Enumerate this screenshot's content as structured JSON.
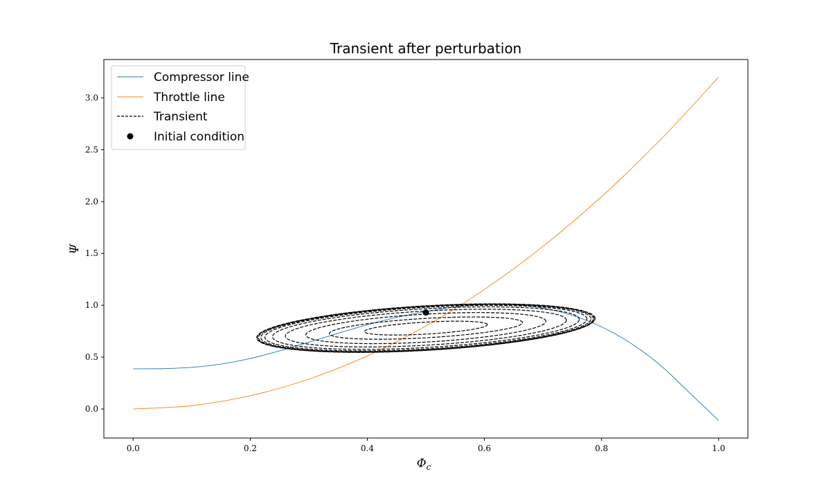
{
  "chart_data": {
    "type": "line",
    "title": "Transient after perturbation",
    "xlabel": "Φ",
    "xlabel_sub": "c",
    "ylabel": "Ψ",
    "xlim": [
      -0.05,
      1.05
    ],
    "ylim": [
      -0.28,
      3.37
    ],
    "xticks": [
      0.0,
      0.2,
      0.4,
      0.6,
      0.8,
      1.0
    ],
    "xtick_labels": [
      "0.0",
      "0.2",
      "0.4",
      "0.6",
      "0.8",
      "1.0"
    ],
    "yticks": [
      0.0,
      0.5,
      1.0,
      1.5,
      2.0,
      2.5,
      3.0
    ],
    "ytick_labels": [
      "0.0",
      "0.5",
      "1.0",
      "1.5",
      "2.0",
      "2.5",
      "3.0"
    ],
    "grid": false,
    "legend_position": "upper-left",
    "series": [
      {
        "name": "Compressor line",
        "style": "solid",
        "color": "#1f77b4",
        "x": [
          0.0,
          0.05,
          0.1,
          0.15,
          0.2,
          0.25,
          0.3,
          0.35,
          0.4,
          0.45,
          0.5,
          0.55,
          0.6,
          0.65,
          0.7,
          0.75,
          0.8,
          0.85,
          0.9,
          0.95,
          1.0
        ],
        "y": [
          0.388,
          0.389,
          0.402,
          0.433,
          0.487,
          0.56,
          0.644,
          0.73,
          0.812,
          0.883,
          0.94,
          0.984,
          1.008,
          1.006,
          0.973,
          0.903,
          0.792,
          0.634,
          0.424,
          0.158,
          -0.11
        ]
      },
      {
        "name": "Throttle line",
        "style": "solid",
        "color": "#ff7f0e",
        "x": [
          0.0,
          0.1,
          0.2,
          0.3,
          0.4,
          0.5,
          0.6,
          0.7,
          0.8,
          0.9,
          1.0
        ],
        "y": [
          0.0,
          0.032,
          0.128,
          0.288,
          0.512,
          0.8,
          1.152,
          1.568,
          2.048,
          2.592,
          3.2
        ]
      },
      {
        "name": "Transient",
        "style": "dashed",
        "color": "#000000",
        "center": [
          0.5,
          0.78
        ],
        "orbits": [
          {
            "rx": 0.105,
            "ry": 0.105,
            "skew": 0.4
          },
          {
            "rx": 0.165,
            "ry": 0.17,
            "skew": 0.4
          },
          {
            "rx": 0.205,
            "ry": 0.245,
            "skew": 0.4
          },
          {
            "rx": 0.24,
            "ry": 0.3,
            "skew": 0.4
          },
          {
            "rx": 0.262,
            "ry": 0.34,
            "skew": 0.4
          },
          {
            "rx": 0.275,
            "ry": 0.365,
            "skew": 0.4
          },
          {
            "rx": 0.282,
            "ry": 0.378,
            "skew": 0.4
          },
          {
            "rx": 0.286,
            "ry": 0.385,
            "skew": 0.4
          },
          {
            "rx": 0.288,
            "ry": 0.389,
            "skew": 0.4
          },
          {
            "rx": 0.289,
            "ry": 0.391,
            "skew": 0.4
          }
        ]
      },
      {
        "name": "Initial condition",
        "style": "marker",
        "color": "#000000",
        "x": [
          0.5
        ],
        "y": [
          0.93
        ]
      }
    ]
  }
}
